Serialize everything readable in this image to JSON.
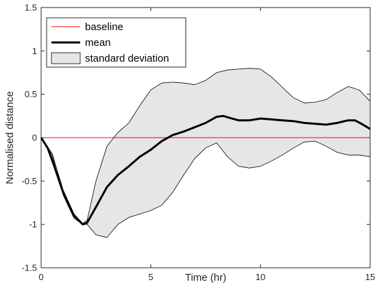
{
  "chart_data": {
    "type": "line",
    "title": "",
    "xlabel": "Time (hr)",
    "ylabel": "Normalised distance",
    "xlim": [
      0,
      15
    ],
    "ylim": [
      -1.5,
      1.5
    ],
    "x_ticks": [
      0,
      5,
      10,
      15
    ],
    "x_tick_labels": [
      "0",
      "5",
      "10",
      "15"
    ],
    "y_ticks": [
      -1.5,
      -1,
      -0.5,
      0,
      0.5,
      1,
      1.5
    ],
    "y_tick_labels": [
      "-1.5",
      "-1",
      "-0.5",
      "0",
      "0.5",
      "1",
      "1.5"
    ],
    "grid": false,
    "legend_position": "top-left",
    "legend": [
      {
        "key": "baseline",
        "label": "baseline",
        "style": "thin-line",
        "color": "#ff0000"
      },
      {
        "key": "mean",
        "label": "mean",
        "style": "thick-line",
        "color": "#000000"
      },
      {
        "key": "std",
        "label": "standard deviation",
        "style": "patch",
        "color": "#e6e6e6"
      }
    ],
    "series": [
      {
        "name": "baseline",
        "x": [
          0,
          15
        ],
        "y": [
          0,
          0
        ],
        "color": "#ff0000"
      },
      {
        "name": "mean",
        "color": "#000000",
        "x": [
          0,
          0.3,
          0.6,
          1.0,
          1.5,
          1.9,
          2.1,
          2.5,
          3.0,
          3.5,
          4.0,
          4.5,
          5.0,
          5.5,
          6.0,
          6.5,
          7.0,
          7.5,
          8.0,
          8.3,
          8.7,
          9.0,
          9.5,
          10.0,
          10.5,
          11.0,
          11.5,
          12.0,
          12.5,
          13.0,
          13.5,
          14.0,
          14.3,
          14.6,
          15.0
        ],
        "y": [
          0,
          -0.12,
          -0.33,
          -0.63,
          -0.9,
          -1.0,
          -0.98,
          -0.8,
          -0.57,
          -0.43,
          -0.33,
          -0.22,
          -0.14,
          -0.04,
          0.03,
          0.07,
          0.12,
          0.17,
          0.24,
          0.25,
          0.22,
          0.2,
          0.2,
          0.22,
          0.21,
          0.2,
          0.19,
          0.17,
          0.16,
          0.15,
          0.17,
          0.2,
          0.2,
          0.16,
          0.1
        ]
      },
      {
        "name": "standard deviation",
        "color": "#e6e6e6",
        "x": [
          0,
          0.5,
          1.0,
          1.5,
          1.9,
          2.1,
          2.5,
          3.0,
          3.5,
          4.0,
          4.5,
          5.0,
          5.5,
          6.0,
          6.5,
          7.0,
          7.5,
          8.0,
          8.5,
          9.0,
          9.5,
          10.0,
          10.5,
          11.0,
          11.5,
          12.0,
          12.5,
          13.0,
          13.5,
          14.0,
          14.5,
          15.0
        ],
        "upper": [
          0,
          -0.18,
          -0.6,
          -0.88,
          -0.99,
          -0.95,
          -0.5,
          -0.1,
          0.06,
          0.17,
          0.37,
          0.55,
          0.63,
          0.64,
          0.63,
          0.61,
          0.66,
          0.75,
          0.78,
          0.79,
          0.8,
          0.79,
          0.7,
          0.58,
          0.46,
          0.4,
          0.41,
          0.44,
          0.52,
          0.59,
          0.55,
          0.42
        ],
        "lower": [
          0,
          -0.2,
          -0.66,
          -0.93,
          -1.0,
          -1.0,
          -1.12,
          -1.15,
          -1.0,
          -0.92,
          -0.88,
          -0.84,
          -0.78,
          -0.63,
          -0.43,
          -0.24,
          -0.12,
          -0.06,
          -0.22,
          -0.33,
          -0.35,
          -0.33,
          -0.27,
          -0.2,
          -0.12,
          -0.05,
          -0.04,
          -0.1,
          -0.17,
          -0.2,
          -0.2,
          -0.22
        ]
      }
    ]
  }
}
